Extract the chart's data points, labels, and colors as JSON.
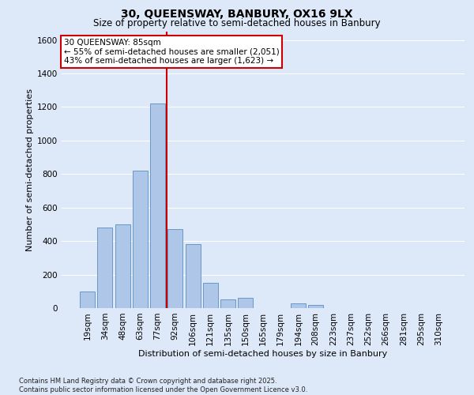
{
  "title_line1": "30, QUEENSWAY, BANBURY, OX16 9LX",
  "title_line2": "Size of property relative to semi-detached houses in Banbury",
  "xlabel": "Distribution of semi-detached houses by size in Banbury",
  "ylabel": "Number of semi-detached properties",
  "footer_line1": "Contains HM Land Registry data © Crown copyright and database right 2025.",
  "footer_line2": "Contains public sector information licensed under the Open Government Licence v3.0.",
  "annotation_line1": "30 QUEENSWAY: 85sqm",
  "annotation_line2": "← 55% of semi-detached houses are smaller (2,051)",
  "annotation_line3": "43% of semi-detached houses are larger (1,623) →",
  "bar_categories": [
    "19sqm",
    "34sqm",
    "48sqm",
    "63sqm",
    "77sqm",
    "92sqm",
    "106sqm",
    "121sqm",
    "135sqm",
    "150sqm",
    "165sqm",
    "179sqm",
    "194sqm",
    "208sqm",
    "223sqm",
    "237sqm",
    "252sqm",
    "266sqm",
    "281sqm",
    "295sqm",
    "310sqm"
  ],
  "bar_values": [
    100,
    480,
    500,
    820,
    1220,
    470,
    380,
    150,
    50,
    60,
    0,
    0,
    30,
    20,
    0,
    0,
    0,
    0,
    0,
    0,
    0
  ],
  "bar_color": "#aec6e8",
  "bar_edge_color": "#5a8fc0",
  "vline_color": "#cc0000",
  "vline_x_index": 4.5,
  "ylim": [
    0,
    1650
  ],
  "yticks": [
    0,
    200,
    400,
    600,
    800,
    1000,
    1200,
    1400,
    1600
  ],
  "background_color": "#dde8f8",
  "grid_color": "#ffffff",
  "annotation_box_color": "#ffffff",
  "annotation_box_edge": "#cc0000",
  "title_fontsize": 10,
  "subtitle_fontsize": 8.5,
  "ylabel_fontsize": 8,
  "xlabel_fontsize": 8,
  "tick_fontsize": 7.5,
  "footer_fontsize": 6,
  "annotation_fontsize": 7.5
}
